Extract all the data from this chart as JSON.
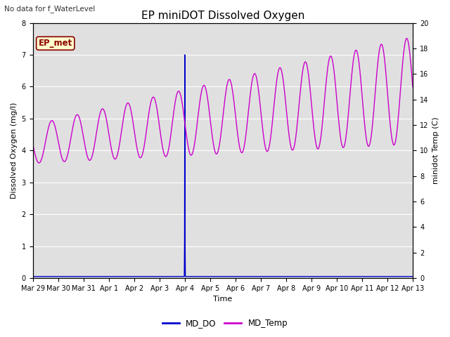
{
  "title": "EP miniDOT Dissolved Oxygen",
  "top_left_text": "No data for f_WaterLevel",
  "annotation_box": "EP_met",
  "xlabel": "Time",
  "ylabel_left": "Dissolved Oxygen (mg/l)",
  "ylabel_right": "minidot Temp (C)",
  "ylim_left": [
    0.0,
    8.0
  ],
  "ylim_right": [
    0,
    20
  ],
  "yticks_left": [
    0.0,
    1.0,
    2.0,
    3.0,
    4.0,
    5.0,
    6.0,
    7.0,
    8.0
  ],
  "yticks_right": [
    0,
    2,
    4,
    6,
    8,
    10,
    12,
    14,
    16,
    18,
    20
  ],
  "xtick_labels": [
    "Mar 29",
    "Mar 30",
    "Mar 31",
    "Apr 1",
    "Apr 2",
    "Apr 3",
    "Apr 4",
    "Apr 5",
    "Apr 6",
    "Apr 7",
    "Apr 8",
    "Apr 9",
    "Apr 10",
    "Apr 11",
    "Apr 12",
    "Apr 13"
  ],
  "legend_labels": [
    "MD_DO",
    "MD_Temp"
  ],
  "do_color": "#0000cc",
  "temp_color": "#cc00cc",
  "bg_color": "#e0e0e0",
  "grid_color": "#ffffff",
  "fig_bg": "#ffffff",
  "title_fontsize": 11,
  "label_fontsize": 8,
  "tick_fontsize": 7,
  "spike_day": 6,
  "n_days": 15
}
